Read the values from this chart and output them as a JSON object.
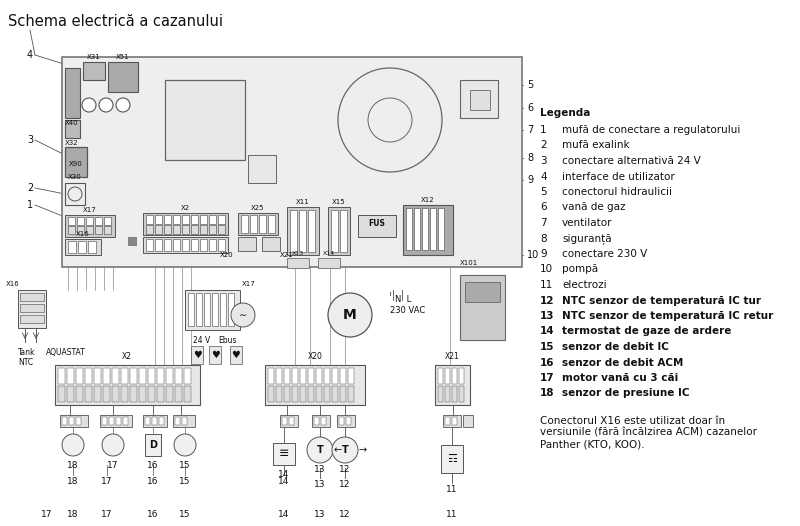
{
  "title": "Schema electrică a cazanului",
  "background_color": "#ffffff",
  "text_color": "#000000",
  "legend_title": "Legenda",
  "legend_items": [
    {
      "num": "1",
      "text": "mufă de conectare a regulatorului",
      "bold": false
    },
    {
      "num": "2",
      "text": "mufă exalink",
      "bold": false
    },
    {
      "num": "3",
      "text": "conectare alternativă 24 V",
      "bold": false
    },
    {
      "num": "4",
      "text": "interface de utilizator",
      "bold": false
    },
    {
      "num": "5",
      "text": "conectorul hidraulicii",
      "bold": false
    },
    {
      "num": "6",
      "text": "vană de gaz",
      "bold": false
    },
    {
      "num": "7",
      "text": "ventilator",
      "bold": false
    },
    {
      "num": "8",
      "text": "siguranță",
      "bold": false
    },
    {
      "num": "9",
      "text": "conectare 230 V",
      "bold": false
    },
    {
      "num": "10",
      "text": "pompă",
      "bold": false
    },
    {
      "num": "11",
      "text": "electrozi",
      "bold": false
    },
    {
      "num": "12",
      "text": "NTC senzor de temperatură IC tur",
      "bold": true
    },
    {
      "num": "13",
      "text": "NTC senzor de temperatură IC retur",
      "bold": true
    },
    {
      "num": "14",
      "text": "termostat de gaze de ardere",
      "bold": true
    },
    {
      "num": "15",
      "text": "senzor de debit IC",
      "bold": true
    },
    {
      "num": "16",
      "text": "senzor de debit ACM",
      "bold": true
    },
    {
      "num": "17",
      "text": "motor vană cu 3 căi",
      "bold": true
    },
    {
      "num": "18",
      "text": "senzor de presiune IC",
      "bold": true
    }
  ],
  "footnote": "Conectorul X16 este utilizat doar în\nversiunile (fără încălzirea ACM) cazanelor\nPanther (KTO, KOO)."
}
